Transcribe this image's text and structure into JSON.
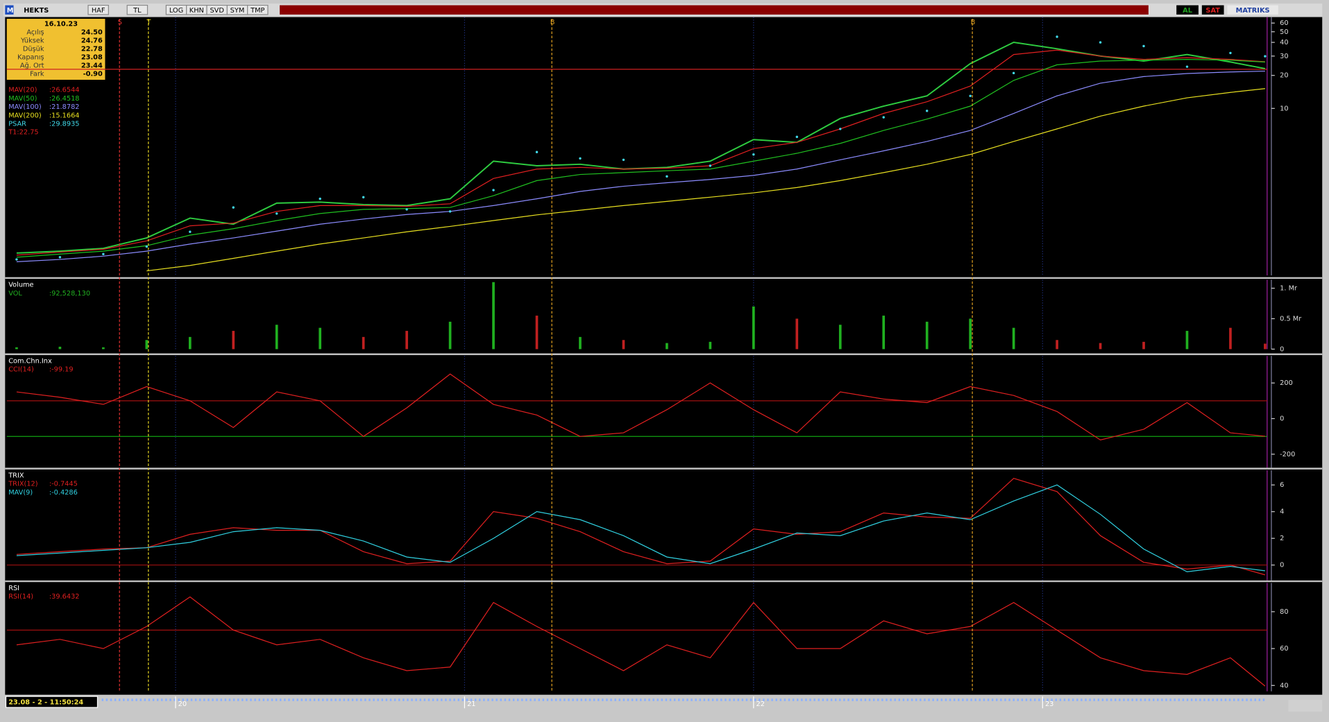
{
  "toolbar": {
    "logo": "M",
    "symbol": "HEKTS",
    "buttons": [
      "HAF",
      "TL",
      "LOG",
      "KHN",
      "SVD",
      "SYM",
      "TMP"
    ],
    "right": [
      "AL",
      "SAT",
      "MATRIKS"
    ]
  },
  "info": {
    "date": "16.10.23",
    "rows": [
      [
        "Açılış",
        "24.50"
      ],
      [
        "Yüksek",
        "24.76"
      ],
      [
        "Düşük",
        "22.78"
      ],
      [
        "Kapanış",
        "23.08"
      ],
      [
        "Ağ. Ort",
        "23.44"
      ],
      [
        "Fark",
        "-0.90"
      ]
    ]
  },
  "status": "23.08 - 2 - 11:50:24",
  "signals": [
    {
      "x": 2019.806,
      "label": "S",
      "color": "#e03030"
    },
    {
      "x": 2019.906,
      "label": "T",
      "color": "#e0d020"
    },
    {
      "x": 2021.302,
      "label": "B",
      "color": "#e0a020"
    },
    {
      "x": 2022.757,
      "label": "B",
      "color": "#e0a020"
    }
  ],
  "chart_data": [
    {
      "type": "line",
      "log": true,
      "xlim": [
        2019.416,
        2023.777
      ],
      "ylim": [
        0.3,
        68
      ],
      "yticks": [
        60,
        50,
        40,
        30,
        20,
        10
      ],
      "x": [
        2019.45,
        2019.6,
        2019.75,
        2019.9,
        2020.05,
        2020.2,
        2020.35,
        2020.5,
        2020.65,
        2020.8,
        2020.95,
        2021.1,
        2021.25,
        2021.4,
        2021.55,
        2021.7,
        2021.85,
        2022.0,
        2022.15,
        2022.3,
        2022.45,
        2022.6,
        2022.75,
        2022.9,
        2023.05,
        2023.2,
        2023.35,
        2023.5,
        2023.65,
        2023.77
      ],
      "t1": {
        "value": 22.75,
        "label": "T1:22.75"
      },
      "series": [
        {
          "color": "#2ecc40",
          "style": "line",
          "values": [
            0.48,
            0.5,
            0.53,
            0.66,
            1.0,
            0.88,
            1.37,
            1.4,
            1.33,
            1.3,
            1.5,
            3.3,
            3.0,
            3.1,
            2.8,
            2.9,
            3.3,
            5.2,
            4.9,
            8.1,
            10.5,
            13,
            25.6,
            40,
            35,
            30,
            27,
            31,
            26.5,
            23.08
          ]
        },
        {
          "name": "MAV(20)",
          "last": ":26.6544",
          "color": "#e02020",
          "style": "line",
          "values": [
            0.46,
            0.49,
            0.52,
            0.62,
            0.85,
            0.9,
            1.15,
            1.3,
            1.3,
            1.28,
            1.35,
            2.3,
            2.8,
            2.9,
            2.8,
            2.85,
            3.0,
            4.3,
            4.9,
            6.5,
            9,
            11.5,
            16,
            31,
            34,
            30,
            28,
            29,
            28,
            26.65
          ]
        },
        {
          "name": "MAV(50)",
          "last": ":26.4518",
          "color": "#20c020",
          "style": "line",
          "values": [
            0.44,
            0.47,
            0.5,
            0.56,
            0.7,
            0.8,
            0.95,
            1.1,
            1.2,
            1.22,
            1.25,
            1.6,
            2.2,
            2.5,
            2.6,
            2.7,
            2.8,
            3.3,
            3.9,
            4.8,
            6.3,
            8.0,
            10.5,
            18,
            25,
            27,
            27.5,
            28,
            27.5,
            26.45
          ]
        },
        {
          "name": "MAV(100)",
          "last": ":21.8782",
          "color": "#8c8cff",
          "style": "line",
          "values": [
            0.4,
            0.42,
            0.45,
            0.5,
            0.58,
            0.66,
            0.76,
            0.88,
            0.98,
            1.08,
            1.15,
            1.3,
            1.5,
            1.75,
            1.95,
            2.1,
            2.25,
            2.45,
            2.8,
            3.4,
            4.1,
            5.0,
            6.3,
            9,
            13,
            17,
            19.5,
            20.8,
            21.5,
            21.88
          ]
        },
        {
          "name": "MAV(200)",
          "last": ":15.1664",
          "color": "#e8e020",
          "style": "line",
          "values": [
            null,
            null,
            null,
            0.33,
            0.37,
            0.43,
            0.5,
            0.58,
            0.66,
            0.75,
            0.84,
            0.95,
            1.07,
            1.18,
            1.3,
            1.42,
            1.55,
            1.7,
            1.9,
            2.2,
            2.6,
            3.1,
            3.8,
            5.0,
            6.5,
            8.5,
            10.5,
            12.5,
            14.0,
            15.17
          ]
        },
        {
          "name": "PSAR",
          "last": ":29.8935",
          "color": "#40d8e8",
          "style": "dots",
          "values": [
            0.42,
            0.44,
            0.47,
            0.55,
            0.75,
            1.25,
            1.1,
            1.5,
            1.55,
            1.2,
            1.15,
            1.8,
            4.0,
            3.5,
            3.4,
            2.4,
            3.0,
            3.8,
            5.5,
            6.5,
            8.3,
            9.5,
            13,
            21,
            45,
            40,
            37,
            24,
            32,
            29.89
          ]
        }
      ]
    },
    {
      "type": "bar",
      "title": "Volume",
      "xlim": [
        2019.416,
        2023.777
      ],
      "ylim": [
        0,
        1.14
      ],
      "yticks": [
        {
          "value": 1,
          "label": "1. Mr"
        },
        {
          "value": 0.5,
          "label": "0.5 Mr"
        },
        0
      ],
      "x": [
        2019.45,
        2019.6,
        2019.75,
        2019.9,
        2020.05,
        2020.2,
        2020.35,
        2020.5,
        2020.65,
        2020.8,
        2020.95,
        2021.1,
        2021.25,
        2021.4,
        2021.55,
        2021.7,
        2021.85,
        2022.0,
        2022.15,
        2022.3,
        2022.45,
        2022.6,
        2022.75,
        2022.9,
        2023.05,
        2023.2,
        2023.35,
        2023.5,
        2023.65,
        2023.77
      ],
      "series": [
        {
          "name": "VOL",
          "last": ":92,528,130",
          "color": "#20b020",
          "down_color": "#c02020",
          "values": [
            0.03,
            0.04,
            0.03,
            0.15,
            0.2,
            0.3,
            0.4,
            0.35,
            0.2,
            0.3,
            0.45,
            1.1,
            0.55,
            0.2,
            0.15,
            0.1,
            0.12,
            0.7,
            0.5,
            0.4,
            0.55,
            0.45,
            0.5,
            0.35,
            0.15,
            0.1,
            0.12,
            0.3,
            0.35,
            0.09
          ]
        }
      ]
    },
    {
      "type": "line",
      "title": "Com.Chn.Inx",
      "xlim": [
        2019.416,
        2023.777
      ],
      "ylim": [
        -276,
        352
      ],
      "yticks": [
        200,
        0,
        -200
      ],
      "hlines": [
        {
          "value": 100,
          "color": "#a01010"
        },
        {
          "value": -100,
          "color": "#10a010"
        }
      ],
      "x": [
        2019.45,
        2019.6,
        2019.75,
        2019.9,
        2020.05,
        2020.2,
        2020.35,
        2020.5,
        2020.65,
        2020.8,
        2020.95,
        2021.1,
        2021.25,
        2021.4,
        2021.55,
        2021.7,
        2021.85,
        2022.0,
        2022.15,
        2022.3,
        2022.45,
        2022.6,
        2022.75,
        2022.9,
        2023.05,
        2023.2,
        2023.35,
        2023.5,
        2023.65,
        2023.77
      ],
      "series": [
        {
          "name": "CCI(14)",
          "last": ":-99.19",
          "color": "#e02020",
          "values": [
            150,
            120,
            80,
            180,
            100,
            -50,
            150,
            100,
            -100,
            60,
            250,
            80,
            20,
            -100,
            -80,
            50,
            200,
            50,
            -80,
            150,
            110,
            90,
            180,
            130,
            40,
            -120,
            -60,
            90,
            -80,
            -99.19
          ]
        }
      ]
    },
    {
      "type": "line",
      "title": "TRIX",
      "xlim": [
        2019.416,
        2023.777
      ],
      "ylim": [
        -1.15,
        7.1
      ],
      "yticks": [
        6,
        4,
        2,
        0
      ],
      "hlines": [
        {
          "value": 0,
          "color": "#a01010"
        }
      ],
      "x": [
        2019.45,
        2019.6,
        2019.75,
        2019.9,
        2020.05,
        2020.2,
        2020.35,
        2020.5,
        2020.65,
        2020.8,
        2020.95,
        2021.1,
        2021.25,
        2021.4,
        2021.55,
        2021.7,
        2021.85,
        2022.0,
        2022.15,
        2022.3,
        2022.45,
        2022.6,
        2022.75,
        2022.9,
        2023.05,
        2023.2,
        2023.35,
        2023.5,
        2023.65,
        2023.77
      ],
      "series": [
        {
          "name": "TRIX(12)",
          "last": ":-0.7445",
          "color": "#e02020",
          "values": [
            0.8,
            1.0,
            1.2,
            1.3,
            2.3,
            2.8,
            2.6,
            2.6,
            1.0,
            0.1,
            0.3,
            4.0,
            3.5,
            2.5,
            1.0,
            0.1,
            0.3,
            2.7,
            2.3,
            2.5,
            3.9,
            3.6,
            3.5,
            6.5,
            5.5,
            2.2,
            0.2,
            -0.3,
            0,
            -0.74
          ]
        },
        {
          "name": "MAV(9)",
          "last": ":-0.4286",
          "color": "#30d0e0",
          "values": [
            0.7,
            0.9,
            1.1,
            1.3,
            1.7,
            2.5,
            2.8,
            2.6,
            1.8,
            0.6,
            0.2,
            2.0,
            4.0,
            3.4,
            2.2,
            0.6,
            0.1,
            1.2,
            2.4,
            2.2,
            3.3,
            3.9,
            3.4,
            4.8,
            6.0,
            3.8,
            1.2,
            -0.5,
            -0.1,
            -0.43
          ]
        }
      ]
    },
    {
      "type": "line",
      "title": "RSI",
      "xlim": [
        2019.416,
        2023.777
      ],
      "ylim": [
        36.8,
        95.6
      ],
      "yticks": [
        80,
        60,
        40
      ],
      "xticks": [
        {
          "value": 2020,
          "label": "20"
        },
        {
          "value": 2021,
          "label": "21"
        },
        {
          "value": 2022,
          "label": "22"
        },
        {
          "value": 2023,
          "label": "23"
        }
      ],
      "hlines": [
        {
          "value": 70,
          "color": "#a01010"
        }
      ],
      "x": [
        2019.45,
        2019.6,
        2019.75,
        2019.9,
        2020.05,
        2020.2,
        2020.35,
        2020.5,
        2020.65,
        2020.8,
        2020.95,
        2021.1,
        2021.25,
        2021.4,
        2021.55,
        2021.7,
        2021.85,
        2022.0,
        2022.15,
        2022.3,
        2022.45,
        2022.6,
        2022.75,
        2022.9,
        2023.05,
        2023.2,
        2023.35,
        2023.5,
        2023.65,
        2023.77
      ],
      "series": [
        {
          "name": "RSI(14)",
          "last": ":39.6432",
          "color": "#e02020",
          "values": [
            62,
            65,
            60,
            72,
            88,
            70,
            62,
            65,
            55,
            48,
            50,
            85,
            72,
            60,
            48,
            62,
            55,
            85,
            60,
            60,
            75,
            68,
            72,
            85,
            70,
            55,
            48,
            46,
            55,
            39.64
          ]
        }
      ]
    }
  ]
}
